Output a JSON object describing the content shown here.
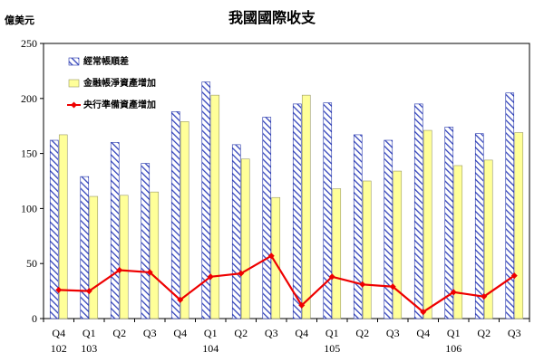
{
  "chart_data": {
    "type": "bar",
    "title": "我國國際收支",
    "ylabel": "億美元",
    "xlabel": "",
    "ylim": [
      0,
      250
    ],
    "yticks": [
      0,
      50,
      100,
      150,
      200,
      250
    ],
    "grid": false,
    "legend_position": "top-left",
    "categories": [
      {
        "quarter": "Q4",
        "year": "102"
      },
      {
        "quarter": "Q1",
        "year": "103"
      },
      {
        "quarter": "Q2",
        "year": ""
      },
      {
        "quarter": "Q3",
        "year": ""
      },
      {
        "quarter": "Q4",
        "year": ""
      },
      {
        "quarter": "Q1",
        "year": "104"
      },
      {
        "quarter": "Q2",
        "year": ""
      },
      {
        "quarter": "Q3",
        "year": ""
      },
      {
        "quarter": "Q4",
        "year": ""
      },
      {
        "quarter": "Q1",
        "year": "105"
      },
      {
        "quarter": "Q2",
        "year": ""
      },
      {
        "quarter": "Q3",
        "year": ""
      },
      {
        "quarter": "Q4",
        "year": ""
      },
      {
        "quarter": "Q1",
        "year": "106"
      },
      {
        "quarter": "Q2",
        "year": ""
      },
      {
        "quarter": "Q3",
        "year": ""
      }
    ],
    "series": [
      {
        "name": "經常帳順差",
        "type": "bar",
        "style": "hatched",
        "color": "#3344bb",
        "values": [
          162,
          129,
          160,
          141,
          188,
          215,
          158,
          183,
          195,
          196,
          167,
          162,
          195,
          174,
          168,
          205
        ]
      },
      {
        "name": "金融帳淨資產增加",
        "type": "bar",
        "style": "solid",
        "color": "#ffff99",
        "values": [
          167,
          111,
          112,
          115,
          179,
          203,
          145,
          110,
          203,
          118,
          125,
          134,
          171,
          139,
          144,
          169
        ]
      },
      {
        "name": "央行準備資產增加",
        "type": "line",
        "color": "#ee0000",
        "values": [
          26,
          25,
          44,
          42,
          17,
          38,
          41,
          57,
          12,
          38,
          31,
          29,
          6,
          24,
          20,
          39
        ]
      }
    ]
  }
}
